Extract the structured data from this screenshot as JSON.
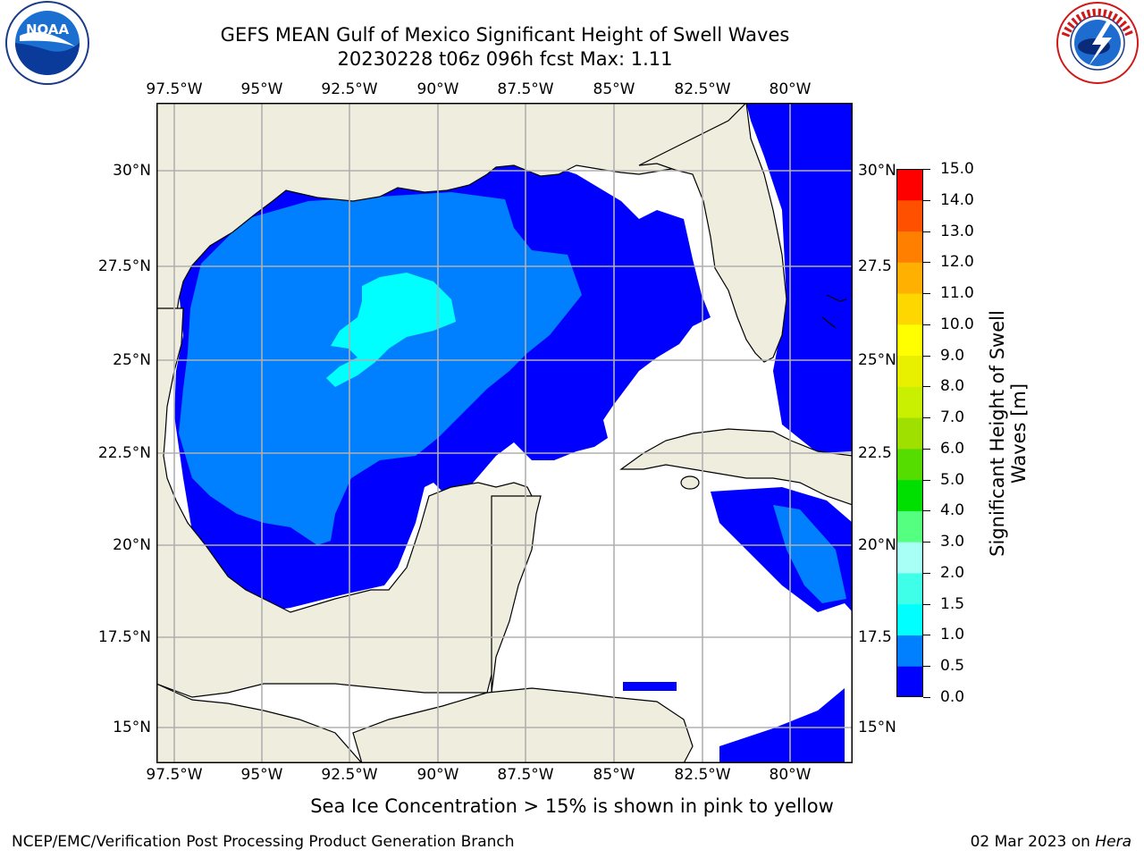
{
  "title": {
    "line1": "GEFS MEAN Gulf of Mexico Significant Height of Swell Waves",
    "line2": "20230228 t06z 096h fcst   Max: 1.11"
  },
  "axes": {
    "lon_labels": [
      "97.5°W",
      "95°W",
      "92.5°W",
      "90°W",
      "87.5°W",
      "85°W",
      "82.5°W",
      "80°W"
    ],
    "lat_labels_left": [
      "30°N",
      "27.5°N",
      "25°N",
      "22.5°N",
      "20°N",
      "17.5°N",
      "15°N"
    ],
    "lat_labels_right": [
      "30°N",
      "27.5",
      "25°N",
      "22.5",
      "20°N",
      "17.5",
      "15°N"
    ]
  },
  "colorbar": {
    "ticks": [
      "0.0",
      "0.5",
      "1.0",
      "1.5",
      "2.0",
      "3.0",
      "4.0",
      "5.0",
      "6.0",
      "7.0",
      "8.0",
      "9.0",
      "10.0",
      "11.0",
      "12.0",
      "13.0",
      "14.0",
      "15.0"
    ],
    "colors": [
      "#0000ff",
      "#0080ff",
      "#00ffff",
      "#40ffe8",
      "#a8fff6",
      "#55ff80",
      "#00e000",
      "#55dd00",
      "#a0e000",
      "#c8f000",
      "#e8f000",
      "#ffff00",
      "#ffd700",
      "#ffb000",
      "#ff8000",
      "#ff5000",
      "#ff0000"
    ],
    "label": "Significant Height of Swell\nWaves [m]"
  },
  "map_colors": {
    "land": "#efedde",
    "ocean_low": "#0000ff",
    "ocean_mid": "#0080ff",
    "ocean_high": "#00ffff",
    "no_data": "#ffffff",
    "grid": "#b0b0b0"
  },
  "logos": {
    "left": {
      "name": "NOAA",
      "text": "NOAA"
    },
    "right": {
      "name": "National Weather Service",
      "text": "NATIONAL WEATHER SERVICE"
    }
  },
  "footer": {
    "note": "Sea Ice Concentration > 15% is shown in pink to yellow",
    "credit": "NCEP/EMC/Verification Post Processing Product Generation Branch",
    "date": "02 Mar 2023 on",
    "host": "Hera"
  }
}
